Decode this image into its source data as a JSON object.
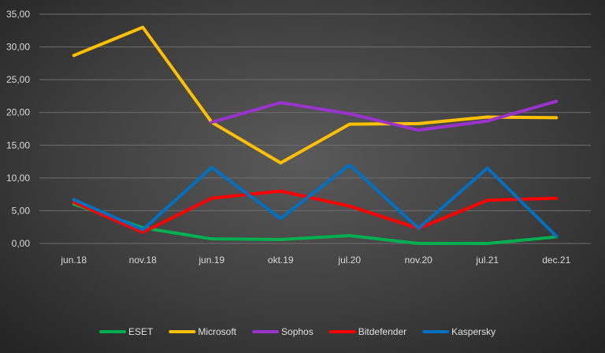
{
  "chart_data": {
    "type": "line",
    "categories": [
      "jun.18",
      "nov.18",
      "jun.19",
      "okt.19",
      "jul.20",
      "nov.20",
      "jul.21",
      "dec.21"
    ],
    "ylim": [
      0,
      35
    ],
    "yticks": [
      "0,00",
      "5,00",
      "10,00",
      "15,00",
      "20,00",
      "25,00",
      "30,00",
      "35,00"
    ],
    "grid": true,
    "legend_position": "bottom",
    "series": [
      {
        "name": "ESET",
        "color": "#00b050",
        "values": [
          6.0,
          2.4,
          0.7,
          0.6,
          1.2,
          0.0,
          0.0,
          1.0
        ]
      },
      {
        "name": "Microsoft",
        "color": "#ffc000",
        "values": [
          28.7,
          33.0,
          18.5,
          12.3,
          18.2,
          18.3,
          19.3,
          19.2
        ]
      },
      {
        "name": "Sophos",
        "color": "#9933cc",
        "values": [
          null,
          null,
          18.5,
          21.5,
          19.8,
          17.3,
          18.7,
          21.7
        ]
      },
      {
        "name": "Bitdefender",
        "color": "#ff0000",
        "values": [
          6.3,
          1.7,
          6.9,
          8.0,
          5.7,
          2.3,
          6.6,
          6.9
        ]
      },
      {
        "name": "Kaspersky",
        "color": "#0070c0",
        "values": [
          6.7,
          2.1,
          11.6,
          3.8,
          12.0,
          2.3,
          11.5,
          1.1
        ]
      }
    ]
  }
}
